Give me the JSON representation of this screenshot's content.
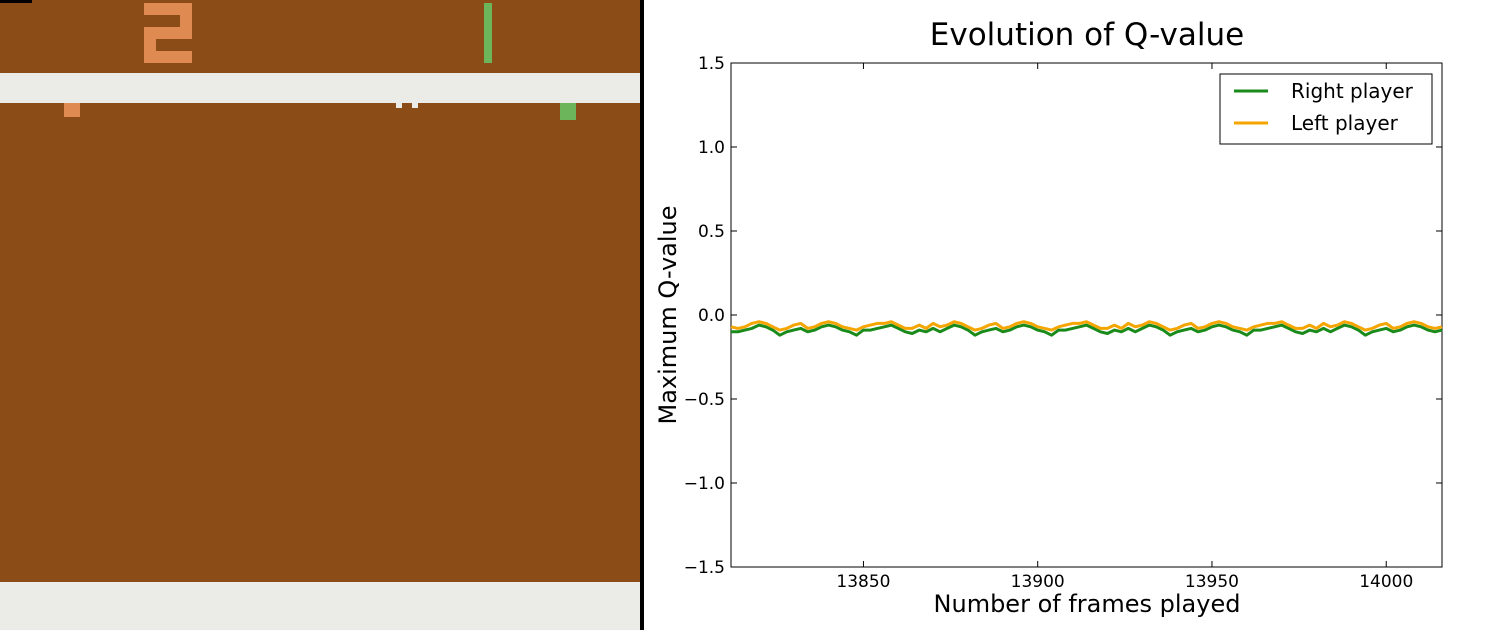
{
  "game": {
    "score_left": 2,
    "score_right": 1,
    "colors": {
      "field": "#8b4c17",
      "wall": "#ebebe8",
      "left_player": "#df8a51",
      "right_player": "#6cb55b",
      "ball": "#ebebe8",
      "corner_mark": "#000000"
    }
  },
  "chart_data": {
    "type": "line",
    "title": "Evolution of Q-value",
    "xlabel": "Number of frames played",
    "ylabel": "Maximum Q-value",
    "xlim": [
      13812,
      14016
    ],
    "ylim": [
      -1.5,
      1.5
    ],
    "xticks": [
      13850,
      13900,
      13950,
      14000
    ],
    "yticks": [
      -1.5,
      -1.0,
      -0.5,
      0.0,
      0.5,
      1.0,
      1.5
    ],
    "ytick_labels": [
      "−1.5",
      "−1.0",
      "−0.5",
      "0.0",
      "0.5",
      "1.0",
      "1.5"
    ],
    "grid": false,
    "legend_position": "top-right",
    "x_start": 13812,
    "x_step": 2,
    "series": [
      {
        "name": "Right player",
        "color": "#1a8a1a",
        "values": [
          -0.1,
          -0.1,
          -0.09,
          -0.08,
          -0.06,
          -0.07,
          -0.09,
          -0.12,
          -0.1,
          -0.09,
          -0.08,
          -0.1,
          -0.09,
          -0.07,
          -0.06,
          -0.07,
          -0.09,
          -0.1,
          -0.12,
          -0.09,
          -0.09,
          -0.08,
          -0.07,
          -0.06,
          -0.08,
          -0.1,
          -0.11,
          -0.09,
          -0.1,
          -0.08,
          -0.1,
          -0.08,
          -0.06,
          -0.07,
          -0.09,
          -0.12,
          -0.1,
          -0.09,
          -0.08,
          -0.1,
          -0.09,
          -0.07,
          -0.06,
          -0.07,
          -0.09,
          -0.1,
          -0.12,
          -0.09,
          -0.09,
          -0.08,
          -0.07,
          -0.06,
          -0.08,
          -0.1,
          -0.11,
          -0.09,
          -0.1,
          -0.08,
          -0.1,
          -0.08,
          -0.06,
          -0.07,
          -0.09,
          -0.12,
          -0.1,
          -0.09,
          -0.08,
          -0.1,
          -0.09,
          -0.07,
          -0.06,
          -0.07,
          -0.09,
          -0.1,
          -0.12,
          -0.09,
          -0.09,
          -0.08,
          -0.07,
          -0.06,
          -0.08,
          -0.1,
          -0.11,
          -0.09,
          -0.1,
          -0.08,
          -0.1,
          -0.08,
          -0.06,
          -0.07,
          -0.09,
          -0.12,
          -0.1,
          -0.09,
          -0.08,
          -0.1,
          -0.09,
          -0.07,
          -0.06,
          -0.07,
          -0.09,
          -0.1,
          -0.09
        ]
      },
      {
        "name": "Left player",
        "color": "#f5a500",
        "values": [
          -0.07,
          -0.08,
          -0.07,
          -0.05,
          -0.04,
          -0.05,
          -0.07,
          -0.09,
          -0.08,
          -0.06,
          -0.05,
          -0.08,
          -0.07,
          -0.05,
          -0.04,
          -0.05,
          -0.07,
          -0.08,
          -0.09,
          -0.07,
          -0.06,
          -0.05,
          -0.05,
          -0.04,
          -0.06,
          -0.08,
          -0.08,
          -0.06,
          -0.08,
          -0.05,
          -0.07,
          -0.06,
          -0.04,
          -0.05,
          -0.07,
          -0.09,
          -0.08,
          -0.06,
          -0.05,
          -0.08,
          -0.07,
          -0.05,
          -0.04,
          -0.05,
          -0.07,
          -0.08,
          -0.09,
          -0.07,
          -0.06,
          -0.05,
          -0.05,
          -0.04,
          -0.06,
          -0.08,
          -0.08,
          -0.06,
          -0.08,
          -0.05,
          -0.07,
          -0.06,
          -0.04,
          -0.05,
          -0.07,
          -0.09,
          -0.08,
          -0.06,
          -0.05,
          -0.08,
          -0.07,
          -0.05,
          -0.04,
          -0.05,
          -0.07,
          -0.08,
          -0.09,
          -0.07,
          -0.06,
          -0.05,
          -0.05,
          -0.04,
          -0.06,
          -0.08,
          -0.08,
          -0.06,
          -0.08,
          -0.05,
          -0.07,
          -0.06,
          -0.04,
          -0.05,
          -0.07,
          -0.09,
          -0.08,
          -0.06,
          -0.05,
          -0.08,
          -0.07,
          -0.05,
          -0.04,
          -0.05,
          -0.07,
          -0.08,
          -0.07
        ]
      }
    ]
  }
}
